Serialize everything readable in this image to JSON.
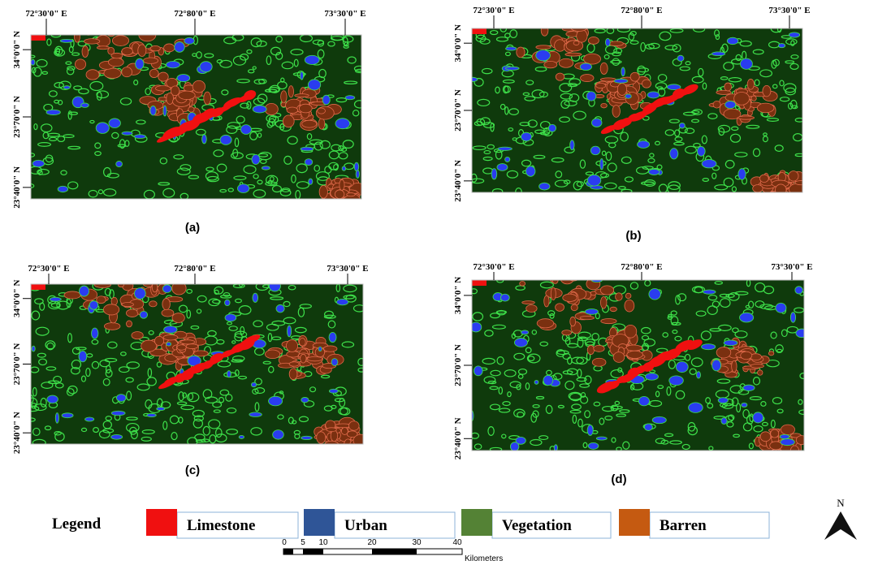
{
  "panels": [
    {
      "label": "(a)",
      "x_labels": [
        "72°30'0\" E",
        "72°80'0\" E",
        "73°30'0\" E"
      ],
      "y_labels": [
        "34°0'0\" N",
        "23°70'0\" N",
        "23°40'0\" N"
      ]
    },
    {
      "label": "(b)",
      "x_labels": [
        "72°30'0\" E",
        "72°80'0\" E",
        "73°30'0\" E"
      ],
      "y_labels": [
        "34°0'0\" N",
        "23°70'0\" N",
        "23°40'0\" N"
      ]
    },
    {
      "label": "(c)",
      "x_labels": [
        "72°30'0\" E",
        "72°80'0\" E",
        "73°30'0\" E"
      ],
      "y_labels": [
        "34°0'0\" N",
        "23°70'0\" N",
        "23°40'0\" N"
      ]
    },
    {
      "label": "(d)",
      "x_labels": [
        "72°30'0\" E",
        "72°80'0\" E",
        "73°30'0\" E"
      ],
      "y_labels": [
        "34°0'0\" N",
        "23°70'0\" N",
        "23°40'0\" N"
      ]
    }
  ],
  "legend": {
    "title": "Legend",
    "items": [
      {
        "name": "Limestone",
        "color": "#f01010"
      },
      {
        "name": "Urban",
        "color": "#2f5597"
      },
      {
        "name": "Vegetation",
        "color": "#548235"
      },
      {
        "name": "Barren",
        "color": "#c55a11"
      }
    ]
  },
  "scale_bar": {
    "ticks": [
      "0",
      "5",
      "10",
      "20",
      "30",
      "40"
    ],
    "unit": "Kilometers"
  },
  "north": "N"
}
